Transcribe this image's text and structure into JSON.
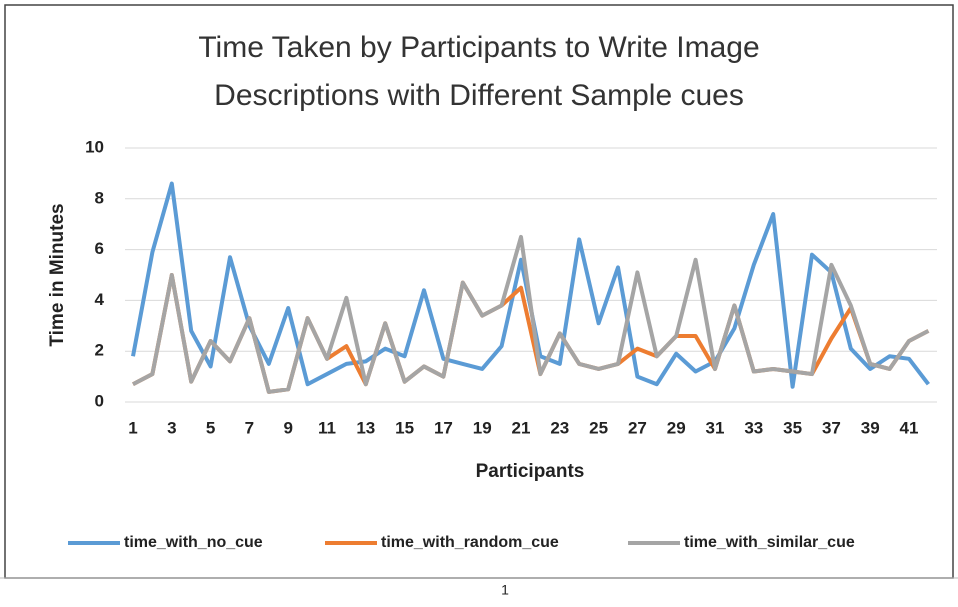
{
  "chart_data": {
    "type": "line",
    "title": "Time Taken by Participants to Write Image Descriptions with Different Sample cues",
    "xlabel": "Participants",
    "ylabel": "Time in Minutes",
    "categories": [
      1,
      null,
      3,
      null,
      5,
      null,
      7,
      null,
      9,
      null,
      11,
      null,
      13,
      null,
      15,
      null,
      17,
      null,
      19,
      null,
      21,
      null,
      23,
      null,
      25,
      null,
      27,
      null,
      29,
      null,
      31,
      null,
      33,
      null,
      35,
      null,
      37,
      null,
      39,
      null,
      41,
      null
    ],
    "series": [
      {
        "name": "time_with_no_cue",
        "color": "#5b9bd5",
        "values": [
          1.8,
          5.9,
          8.6,
          2.8,
          1.4,
          5.7,
          3.0,
          1.5,
          3.7,
          0.7,
          1.1,
          1.5,
          1.6,
          2.1,
          1.8,
          4.4,
          1.7,
          1.5,
          1.3,
          2.2,
          5.6,
          1.8,
          1.5,
          6.4,
          3.1,
          5.3,
          1.0,
          0.7,
          1.9,
          1.2,
          1.6,
          2.9,
          5.4,
          7.4,
          0.6,
          5.8,
          5.1,
          2.1,
          1.3,
          1.8,
          1.7,
          0.7
        ]
      },
      {
        "name": "time_with_random_cue",
        "color": "#ed7d31",
        "values": [
          0.7,
          1.1,
          5.0,
          0.8,
          2.4,
          1.6,
          3.3,
          0.4,
          0.5,
          3.3,
          1.7,
          2.2,
          0.7,
          3.1,
          0.8,
          1.4,
          1.0,
          4.7,
          3.4,
          3.8,
          4.5,
          1.1,
          2.7,
          1.5,
          1.3,
          1.5,
          2.1,
          1.8,
          2.6,
          2.6,
          1.3,
          3.8,
          1.2,
          1.3,
          1.2,
          1.1,
          2.5,
          3.7,
          1.5,
          1.3,
          2.4,
          2.8
        ]
      },
      {
        "name": "time_with_similar_cue",
        "color": "#a5a5a5",
        "values": [
          0.7,
          1.1,
          5.0,
          0.8,
          2.4,
          1.6,
          3.3,
          0.4,
          0.5,
          3.3,
          1.7,
          4.1,
          0.7,
          3.1,
          0.8,
          1.4,
          1.0,
          4.7,
          3.4,
          3.8,
          6.5,
          1.1,
          2.7,
          1.5,
          1.3,
          1.5,
          5.1,
          1.8,
          2.6,
          5.6,
          1.3,
          3.8,
          1.2,
          1.3,
          1.2,
          1.1,
          5.4,
          3.8,
          1.5,
          1.3,
          2.4,
          2.8
        ]
      }
    ],
    "ylim": [
      0,
      10
    ],
    "yticks": [
      0,
      2,
      4,
      6,
      8,
      10
    ],
    "grid": true,
    "legend": "bottom"
  },
  "footer": {
    "page_number": "1"
  }
}
